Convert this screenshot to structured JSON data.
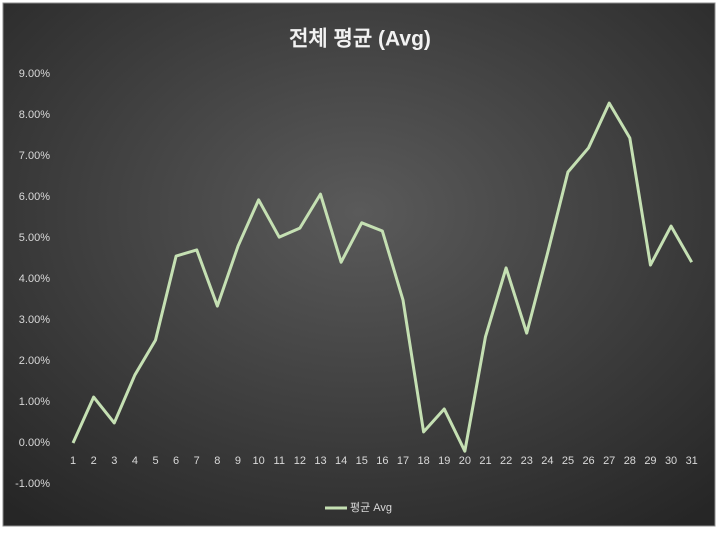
{
  "chart_data": {
    "type": "line",
    "title": "전체 평균 (Avg)",
    "categories": [
      "1",
      "2",
      "3",
      "4",
      "5",
      "6",
      "7",
      "8",
      "9",
      "10",
      "11",
      "12",
      "13",
      "14",
      "15",
      "16",
      "17",
      "18",
      "19",
      "20",
      "21",
      "22",
      "23",
      "24",
      "25",
      "26",
      "27",
      "28",
      "29",
      "30",
      "31"
    ],
    "series": [
      {
        "name": "평균 Avg",
        "color": "#c5e0b3",
        "values": [
          0,
          1.12,
          0.49,
          1.66,
          2.51,
          4.56,
          4.71,
          3.34,
          4.8,
          5.93,
          5.02,
          5.24,
          6.07,
          4.41,
          5.37,
          5.17,
          3.49,
          0.27,
          0.83,
          -0.2,
          2.59,
          4.27,
          2.68,
          4.61,
          6.61,
          7.2,
          8.29,
          7.44,
          4.34,
          5.29,
          4.41
        ]
      }
    ],
    "ylim": [
      -1,
      9
    ],
    "yticks": [
      {
        "value": -1,
        "label": "-1.00%"
      },
      {
        "value": 0,
        "label": "0.00%"
      },
      {
        "value": 1,
        "label": "1.00%"
      },
      {
        "value": 2,
        "label": "2.00%"
      },
      {
        "value": 3,
        "label": "3.00%"
      },
      {
        "value": 4,
        "label": "4.00%"
      },
      {
        "value": 5,
        "label": "5.00%"
      },
      {
        "value": 6,
        "label": "6.00%"
      },
      {
        "value": 7,
        "label": "7.00%"
      },
      {
        "value": 8,
        "label": "8.00%"
      },
      {
        "value": 9,
        "label": "9.00%"
      }
    ],
    "grid": false,
    "legend": "bottom"
  }
}
